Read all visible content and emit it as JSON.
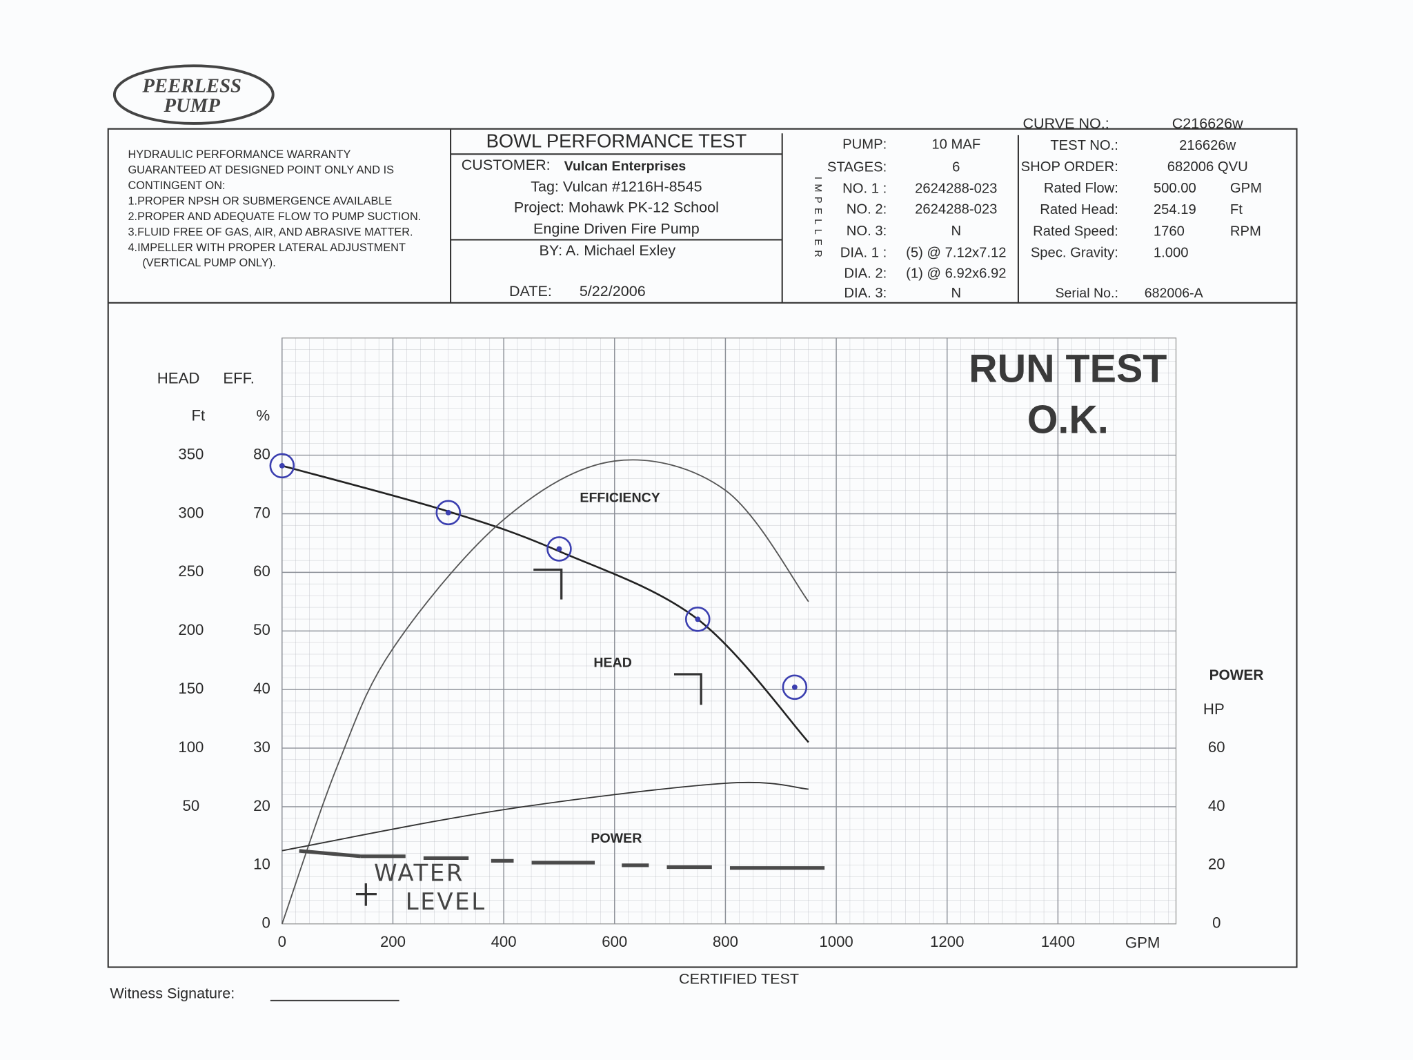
{
  "logo": {
    "line1": "PEERLESS",
    "line2": "PUMP"
  },
  "curve_no": {
    "label": "CURVE NO.:",
    "value": "C216626w"
  },
  "warranty": [
    "HYDRAULIC PERFORMANCE WARRANTY",
    "GUARANTEED AT DESIGNED POINT ONLY AND IS",
    "CONTINGENT ON:",
    "1.PROPER NPSH OR SUBMERGENCE AVAILABLE",
    "2.PROPER AND ADEQUATE FLOW TO PUMP SUCTION.",
    "3.FLUID FREE OF GAS, AIR, AND ABRASIVE MATTER.",
    "4.IMPELLER WITH PROPER LATERAL ADJUSTMENT",
    "(VERTICAL PUMP ONLY)."
  ],
  "test": {
    "title": "BOWL PERFORMANCE TEST",
    "customer_label": "CUSTOMER:",
    "customer": "Vulcan Enterprises",
    "tag": "Tag: Vulcan #1216H-8545",
    "project": "Project: Mohawk PK-12 School",
    "description": "Engine Driven Fire Pump",
    "by": "BY: A. Michael Exley",
    "date_label": "DATE:",
    "date": "5/22/2006"
  },
  "impeller_label": "IMPELLER",
  "pump_specs": [
    {
      "label": "PUMP:",
      "value": "10 MAF"
    },
    {
      "label": "STAGES:",
      "value": "6"
    },
    {
      "label": "NO. 1 :",
      "value": "2624288-023"
    },
    {
      "label": "NO. 2:",
      "value": "2624288-023"
    },
    {
      "label": "NO. 3:",
      "value": "N"
    },
    {
      "label": "DIA. 1 :",
      "value": "(5) @ 7.12x7.12"
    },
    {
      "label": "DIA. 2:",
      "value": "(1) @ 6.92x6.92"
    },
    {
      "label": "DIA. 3:",
      "value": "N"
    }
  ],
  "order_specs": [
    {
      "label": "TEST NO.:",
      "value": "216626w"
    },
    {
      "label": "SHOP ORDER:",
      "value": "682006 QVU"
    },
    {
      "label": "Rated Flow:",
      "value": "500.00",
      "unit": "GPM"
    },
    {
      "label": "Rated Head:",
      "value": "254.19",
      "unit": "Ft"
    },
    {
      "label": "Rated Speed:",
      "value": "1760",
      "unit": "RPM"
    },
    {
      "label": "Spec. Gravity:",
      "value": "1.000"
    }
  ],
  "serial": {
    "label": "Serial No.:",
    "value": "682006-A"
  },
  "stamp": {
    "line1": "RUN TEST",
    "line2": "O.K."
  },
  "chart": {
    "type": "line",
    "x_label": "GPM",
    "head_label": "HEAD",
    "head_unit": "Ft",
    "eff_label": "EFF.",
    "eff_unit": "%",
    "power_label": "POWER",
    "power_unit": "HP",
    "xlim": [
      0,
      1600
    ],
    "xticks": [
      0,
      200,
      400,
      600,
      800,
      1000,
      1200,
      1400
    ],
    "ylim": [
      -50,
      450
    ],
    "yticks": [
      50,
      100,
      150,
      200,
      250,
      300,
      350
    ],
    "y2lim": [
      0,
      100
    ],
    "y2ticks": [
      0,
      10,
      20,
      30,
      40,
      50,
      60,
      70,
      80
    ],
    "y3lim": [
      0,
      200
    ],
    "y3ticks": [
      0,
      20,
      40,
      60
    ],
    "grid": true,
    "series": [
      {
        "name": "HEAD",
        "axis": "y",
        "color": "#222222",
        "x": [
          0,
          300,
          500,
          750,
          950
        ],
        "values": [
          341,
          302,
          268,
          210,
          105
        ]
      },
      {
        "name": "EFFICIENCY",
        "axis": "y2",
        "color": "#555555",
        "x": [
          0,
          100,
          200,
          400,
          600,
          800,
          950
        ],
        "values": [
          0,
          27,
          47,
          69,
          79,
          74,
          55
        ]
      },
      {
        "name": "POWER",
        "axis": "y3",
        "color": "#333333",
        "x": [
          0,
          400,
          800,
          950
        ],
        "values": [
          25,
          39,
          48,
          46
        ]
      }
    ],
    "test_points": {
      "axis": "y",
      "color": "#3b3fb0",
      "x": [
        0,
        300,
        500,
        750,
        925
      ],
      "values": [
        341,
        301,
        270,
        210,
        152
      ]
    },
    "water_level": {
      "line1": "WATER",
      "line2": "LEVEL"
    }
  },
  "footer": {
    "witness": "Witness Signature:",
    "certified": "CERTIFIED TEST"
  }
}
